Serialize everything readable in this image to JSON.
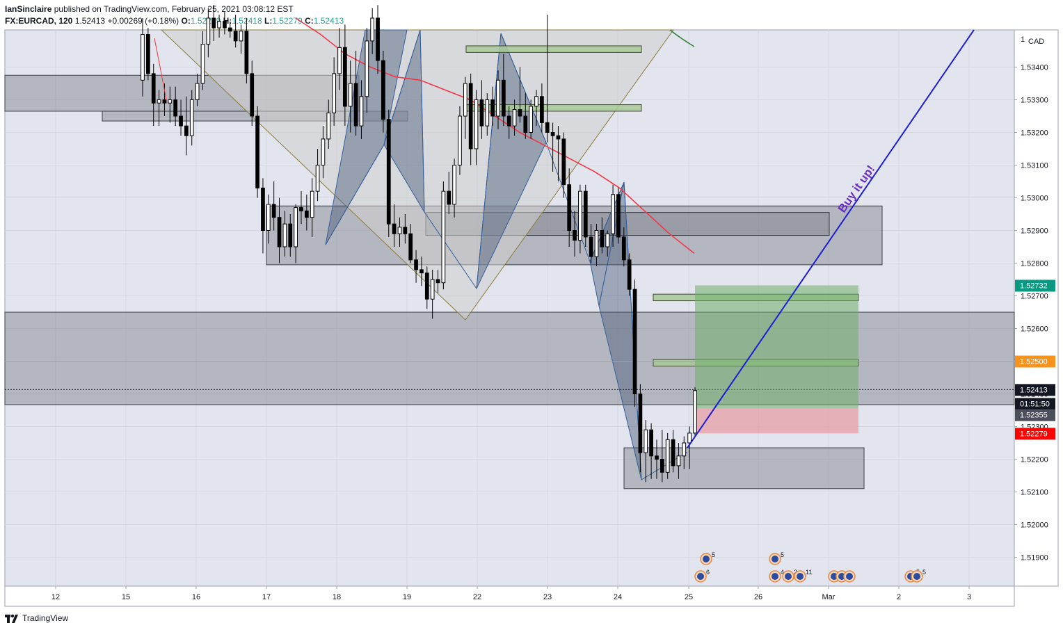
{
  "header": {
    "author": "IanSinclaire",
    "published": "published on TradingView.com, February 25, 2021 03:08:12 EST",
    "symbol": "FX:EURCAD, 120",
    "last": "1.52413",
    "change": "+0.00269 (+0.18%)",
    "o_label": "O:",
    "o_value": "1.52279",
    "h_label": "H:",
    "h_value": "1.52418",
    "l_label": "L:",
    "l_value": "1.52279",
    "c_label": "C:",
    "c_value": "1.52413"
  },
  "footer": {
    "brand": "TradingView"
  },
  "colors": {
    "background": "#e3e5ee",
    "bull": "#ffffff",
    "bear": "#000000",
    "ma": "#f23645",
    "trendline": "#1c1cd6",
    "pattern": "#4a5a78",
    "zone": "#7d7f87",
    "green_box": "#a9c998",
    "target": "#6fae6a",
    "stop": "#e79ea6",
    "label_green": "#089981",
    "label_orange": "#f7931a",
    "label_red": "#ff0000"
  },
  "chart_data": {
    "type": "candlestick",
    "symbol": "FX:EURCAD",
    "interval": "120",
    "currency": "CAD",
    "y_axis": {
      "range": [
        1.5182,
        1.5354
      ],
      "ticks": [
        "1.51900",
        "1.52000",
        "1.52100",
        "1.52200",
        "1.52300",
        "1.52400",
        "1.52500",
        "1.52600",
        "1.52700",
        "1.52800",
        "1.52900",
        "1.53000",
        "1.53100",
        "1.53200",
        "1.53300",
        "1.53400"
      ]
    },
    "x_axis": {
      "ticks": [
        "12",
        "15",
        "16",
        "17",
        "18",
        "19",
        "22",
        "23",
        "24",
        "25",
        "26",
        "Mar",
        "2",
        "3"
      ]
    },
    "price_labels": [
      {
        "value": "1.52732",
        "role": "target"
      },
      {
        "value": "1.52500",
        "role": "level"
      },
      {
        "value": "1.52413",
        "role": "last"
      },
      {
        "value": "01:51:50",
        "role": "countdown"
      },
      {
        "value": "1.52355",
        "role": "entry"
      },
      {
        "value": "1.52279",
        "role": "stop"
      }
    ],
    "annotation": "Buy it up!",
    "event_badges": [
      "5",
      "6",
      "5",
      "4",
      "2",
      "11",
      "5",
      "5"
    ],
    "candles": [
      {
        "o": 1.5336,
        "h": 1.5355,
        "l": 1.5331,
        "c": 1.535
      },
      {
        "o": 1.535,
        "h": 1.5352,
        "l": 1.5336,
        "c": 1.5338
      },
      {
        "o": 1.5338,
        "h": 1.5341,
        "l": 1.5322,
        "c": 1.5329
      },
      {
        "o": 1.5329,
        "h": 1.5333,
        "l": 1.5322,
        "c": 1.533
      },
      {
        "o": 1.533,
        "h": 1.5335,
        "l": 1.5325,
        "c": 1.5329
      },
      {
        "o": 1.5329,
        "h": 1.5334,
        "l": 1.5323,
        "c": 1.533
      },
      {
        "o": 1.533,
        "h": 1.5334,
        "l": 1.5322,
        "c": 1.5325
      },
      {
        "o": 1.5325,
        "h": 1.533,
        "l": 1.5319,
        "c": 1.5322
      },
      {
        "o": 1.5322,
        "h": 1.5331,
        "l": 1.5313,
        "c": 1.5319
      },
      {
        "o": 1.5319,
        "h": 1.5333,
        "l": 1.5316,
        "c": 1.533
      },
      {
        "o": 1.533,
        "h": 1.5338,
        "l": 1.5328,
        "c": 1.5335
      },
      {
        "o": 1.5335,
        "h": 1.5351,
        "l": 1.5333,
        "c": 1.5347
      },
      {
        "o": 1.5347,
        "h": 1.5358,
        "l": 1.5343,
        "c": 1.5355
      },
      {
        "o": 1.5355,
        "h": 1.5359,
        "l": 1.5348,
        "c": 1.5352
      },
      {
        "o": 1.5352,
        "h": 1.5356,
        "l": 1.5349,
        "c": 1.5354
      },
      {
        "o": 1.5354,
        "h": 1.5357,
        "l": 1.535,
        "c": 1.5352
      },
      {
        "o": 1.5352,
        "h": 1.5354,
        "l": 1.5349,
        "c": 1.5351
      },
      {
        "o": 1.5351,
        "h": 1.5356,
        "l": 1.5346,
        "c": 1.5348
      },
      {
        "o": 1.5348,
        "h": 1.5353,
        "l": 1.5344,
        "c": 1.5351
      },
      {
        "o": 1.5351,
        "h": 1.5355,
        "l": 1.5335,
        "c": 1.5338
      },
      {
        "o": 1.5338,
        "h": 1.5342,
        "l": 1.5322,
        "c": 1.5325
      },
      {
        "o": 1.5325,
        "h": 1.5328,
        "l": 1.53,
        "c": 1.5303
      },
      {
        "o": 1.5303,
        "h": 1.5306,
        "l": 1.5283,
        "c": 1.529
      },
      {
        "o": 1.529,
        "h": 1.5301,
        "l": 1.5286,
        "c": 1.5298
      },
      {
        "o": 1.5298,
        "h": 1.5305,
        "l": 1.529,
        "c": 1.5294
      },
      {
        "o": 1.5294,
        "h": 1.53,
        "l": 1.528,
        "c": 1.5285
      },
      {
        "o": 1.5285,
        "h": 1.5296,
        "l": 1.5282,
        "c": 1.5292
      },
      {
        "o": 1.5292,
        "h": 1.5295,
        "l": 1.5282,
        "c": 1.5285
      },
      {
        "o": 1.5285,
        "h": 1.5298,
        "l": 1.528,
        "c": 1.5297
      },
      {
        "o": 1.5297,
        "h": 1.5302,
        "l": 1.5292,
        "c": 1.5296
      },
      {
        "o": 1.5296,
        "h": 1.5301,
        "l": 1.529,
        "c": 1.5294
      },
      {
        "o": 1.5294,
        "h": 1.5306,
        "l": 1.5288,
        "c": 1.5302
      },
      {
        "o": 1.5302,
        "h": 1.5315,
        "l": 1.5299,
        "c": 1.531
      },
      {
        "o": 1.531,
        "h": 1.5322,
        "l": 1.5306,
        "c": 1.5318
      },
      {
        "o": 1.5318,
        "h": 1.533,
        "l": 1.5315,
        "c": 1.5326
      },
      {
        "o": 1.5326,
        "h": 1.5343,
        "l": 1.5322,
        "c": 1.5338
      },
      {
        "o": 1.5338,
        "h": 1.5352,
        "l": 1.5333,
        "c": 1.5346
      },
      {
        "o": 1.5346,
        "h": 1.5353,
        "l": 1.5322,
        "c": 1.5328
      },
      {
        "o": 1.5328,
        "h": 1.5342,
        "l": 1.532,
        "c": 1.5335
      },
      {
        "o": 1.5335,
        "h": 1.5345,
        "l": 1.5319,
        "c": 1.5322
      },
      {
        "o": 1.5322,
        "h": 1.5336,
        "l": 1.5318,
        "c": 1.5331
      },
      {
        "o": 1.5331,
        "h": 1.5352,
        "l": 1.5326,
        "c": 1.5348
      },
      {
        "o": 1.5348,
        "h": 1.5358,
        "l": 1.5344,
        "c": 1.5355
      },
      {
        "o": 1.5355,
        "h": 1.5359,
        "l": 1.5338,
        "c": 1.5342
      },
      {
        "o": 1.5342,
        "h": 1.5345,
        "l": 1.532,
        "c": 1.5324
      },
      {
        "o": 1.5324,
        "h": 1.5327,
        "l": 1.5288,
        "c": 1.5292
      },
      {
        "o": 1.5292,
        "h": 1.5298,
        "l": 1.5285,
        "c": 1.5289
      },
      {
        "o": 1.5289,
        "h": 1.5294,
        "l": 1.5285,
        "c": 1.5291
      },
      {
        "o": 1.5291,
        "h": 1.5295,
        "l": 1.5286,
        "c": 1.5289
      },
      {
        "o": 1.5289,
        "h": 1.5292,
        "l": 1.528,
        "c": 1.5281
      },
      {
        "o": 1.5281,
        "h": 1.5284,
        "l": 1.5274,
        "c": 1.5278
      },
      {
        "o": 1.5278,
        "h": 1.5282,
        "l": 1.5273,
        "c": 1.5277
      },
      {
        "o": 1.5277,
        "h": 1.5279,
        "l": 1.5266,
        "c": 1.5269
      },
      {
        "o": 1.5269,
        "h": 1.5278,
        "l": 1.5263,
        "c": 1.5275
      },
      {
        "o": 1.5275,
        "h": 1.5278,
        "l": 1.5271,
        "c": 1.5274
      },
      {
        "o": 1.5274,
        "h": 1.5305,
        "l": 1.5272,
        "c": 1.5302
      },
      {
        "o": 1.5302,
        "h": 1.5308,
        "l": 1.5295,
        "c": 1.5298
      },
      {
        "o": 1.5298,
        "h": 1.5312,
        "l": 1.5294,
        "c": 1.531
      },
      {
        "o": 1.531,
        "h": 1.5328,
        "l": 1.5307,
        "c": 1.5325
      },
      {
        "o": 1.5325,
        "h": 1.5337,
        "l": 1.5318,
        "c": 1.5335
      },
      {
        "o": 1.5335,
        "h": 1.5338,
        "l": 1.531,
        "c": 1.5315
      },
      {
        "o": 1.5315,
        "h": 1.5333,
        "l": 1.531,
        "c": 1.533
      },
      {
        "o": 1.533,
        "h": 1.5336,
        "l": 1.5318,
        "c": 1.5322
      },
      {
        "o": 1.5322,
        "h": 1.5332,
        "l": 1.5319,
        "c": 1.533
      },
      {
        "o": 1.533,
        "h": 1.5334,
        "l": 1.5322,
        "c": 1.5325
      },
      {
        "o": 1.5325,
        "h": 1.5339,
        "l": 1.5321,
        "c": 1.5336
      },
      {
        "o": 1.5336,
        "h": 1.5344,
        "l": 1.5322,
        "c": 1.5325
      },
      {
        "o": 1.5325,
        "h": 1.5328,
        "l": 1.5318,
        "c": 1.5322
      },
      {
        "o": 1.5322,
        "h": 1.533,
        "l": 1.5319,
        "c": 1.5327
      },
      {
        "o": 1.5327,
        "h": 1.534,
        "l": 1.5323,
        "c": 1.5325
      },
      {
        "o": 1.5325,
        "h": 1.5332,
        "l": 1.5318,
        "c": 1.532
      },
      {
        "o": 1.532,
        "h": 1.533,
        "l": 1.5318,
        "c": 1.5328
      },
      {
        "o": 1.5328,
        "h": 1.5333,
        "l": 1.5322,
        "c": 1.5331
      },
      {
        "o": 1.5331,
        "h": 1.5335,
        "l": 1.532,
        "c": 1.5323
      },
      {
        "o": 1.5323,
        "h": 1.5356,
        "l": 1.5317,
        "c": 1.532
      },
      {
        "o": 1.532,
        "h": 1.5323,
        "l": 1.5308,
        "c": 1.5319
      },
      {
        "o": 1.5319,
        "h": 1.5322,
        "l": 1.5305,
        "c": 1.5318
      },
      {
        "o": 1.5318,
        "h": 1.532,
        "l": 1.53,
        "c": 1.5304
      },
      {
        "o": 1.5304,
        "h": 1.5309,
        "l": 1.5285,
        "c": 1.529
      },
      {
        "o": 1.529,
        "h": 1.5296,
        "l": 1.5282,
        "c": 1.5287
      },
      {
        "o": 1.5287,
        "h": 1.5304,
        "l": 1.5283,
        "c": 1.5302
      },
      {
        "o": 1.5302,
        "h": 1.5304,
        "l": 1.5285,
        "c": 1.5288
      },
      {
        "o": 1.5288,
        "h": 1.5292,
        "l": 1.528,
        "c": 1.5282
      },
      {
        "o": 1.5282,
        "h": 1.5292,
        "l": 1.5279,
        "c": 1.529
      },
      {
        "o": 1.529,
        "h": 1.5294,
        "l": 1.5283,
        "c": 1.5285
      },
      {
        "o": 1.5285,
        "h": 1.529,
        "l": 1.5282,
        "c": 1.5289
      },
      {
        "o": 1.5289,
        "h": 1.5304,
        "l": 1.5285,
        "c": 1.5301
      },
      {
        "o": 1.5301,
        "h": 1.5303,
        "l": 1.5286,
        "c": 1.5288
      },
      {
        "o": 1.5288,
        "h": 1.5291,
        "l": 1.5279,
        "c": 1.5281
      },
      {
        "o": 1.5281,
        "h": 1.5283,
        "l": 1.527,
        "c": 1.5272
      },
      {
        "o": 1.5272,
        "h": 1.5275,
        "l": 1.5236,
        "c": 1.524
      },
      {
        "o": 1.524,
        "h": 1.5243,
        "l": 1.5216,
        "c": 1.5222
      },
      {
        "o": 1.5222,
        "h": 1.5232,
        "l": 1.5213,
        "c": 1.5229
      },
      {
        "o": 1.5229,
        "h": 1.5231,
        "l": 1.5214,
        "c": 1.5221
      },
      {
        "o": 1.5221,
        "h": 1.5226,
        "l": 1.5214,
        "c": 1.522
      },
      {
        "o": 1.522,
        "h": 1.5229,
        "l": 1.5213,
        "c": 1.5216
      },
      {
        "o": 1.5216,
        "h": 1.5228,
        "l": 1.5214,
        "c": 1.5226
      },
      {
        "o": 1.5226,
        "h": 1.5229,
        "l": 1.5216,
        "c": 1.5218
      },
      {
        "o": 1.5218,
        "h": 1.5225,
        "l": 1.5214,
        "c": 1.5221
      },
      {
        "o": 1.5221,
        "h": 1.5227,
        "l": 1.5217,
        "c": 1.5225
      },
      {
        "o": 1.5225,
        "h": 1.523,
        "l": 1.5217,
        "c": 1.5228
      },
      {
        "o": 1.5228,
        "h": 1.5242,
        "l": 1.5227,
        "c": 1.5241
      }
    ],
    "ma_series": [
      1.5355,
      1.535,
      1.5344,
      1.534,
      1.5337,
      1.5336,
      1.5333,
      1.533,
      1.5325,
      1.532,
      1.5316,
      1.5312,
      1.5308,
      1.5303,
      1.5296,
      1.5289,
      1.5283
    ],
    "zones": [
      {
        "top": 1.53375,
        "bottom": 1.53265
      },
      {
        "top": 1.53265,
        "bottom": 1.53235
      },
      {
        "top": 1.52975,
        "bottom": 1.52795
      },
      {
        "top": 1.52955,
        "bottom": 1.52885
      },
      {
        "top": 1.5265,
        "bottom": 1.52367
      },
      {
        "top": 1.52235,
        "bottom": 1.5211
      }
    ],
    "levels": [
      1.525,
      1.52413
    ]
  }
}
